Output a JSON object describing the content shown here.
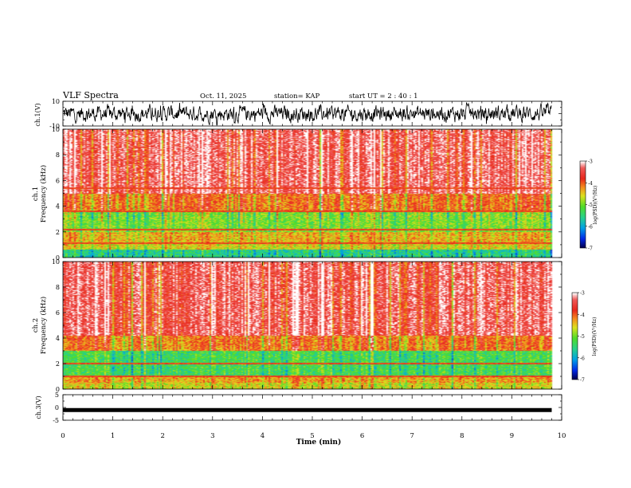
{
  "header": {
    "title": "VLF Spectra",
    "date": "Oct. 11, 2025",
    "station": "station= KAP",
    "start": "start  UT =   2 : 40 : 1"
  },
  "chart_data": [
    {
      "type": "line",
      "name": "ch1-waveform",
      "ylabel": "ch.1(V)",
      "ylim": [
        -10,
        10
      ],
      "yticks": [
        "10",
        "-10"
      ],
      "xlim": [
        0,
        10
      ],
      "data_end_min": 9.8,
      "description_values": {
        "mean": 0,
        "typical_amplitude": 4
      }
    },
    {
      "type": "heatmap",
      "name": "ch1-spectrogram",
      "ylabel": "ch.1\nFrequency  (kHz)",
      "ylim": [
        0,
        10
      ],
      "yticks": [
        "0",
        "2",
        "4",
        "6",
        "8",
        "10"
      ],
      "xlim": [
        0,
        10
      ],
      "data_end_min": 9.8,
      "colorbar": {
        "label": "log(PSD)(V²/Hz)",
        "ticks": [
          "-3",
          "-4",
          "-5",
          "-6",
          "-7"
        ],
        "range": [
          -7,
          -3
        ]
      },
      "bands_khz": [
        {
          "from": 0,
          "to": 0.6,
          "level": -5.6
        },
        {
          "from": 0.6,
          "to": 1.2,
          "level": -4.6
        },
        {
          "from": 1.2,
          "to": 2.0,
          "level": -4.4
        },
        {
          "from": 2.0,
          "to": 3.6,
          "level": -5.0
        },
        {
          "from": 3.6,
          "to": 5.0,
          "level": -4.1
        },
        {
          "from": 5.0,
          "to": 10.0,
          "level": -3.4
        }
      ],
      "lines_khz": [
        1.1,
        2.2,
        3.6,
        5.4
      ]
    },
    {
      "type": "heatmap",
      "name": "ch2-spectrogram",
      "ylabel": "ch.2\nFrequency  (kHz)",
      "ylim": [
        0,
        10
      ],
      "yticks": [
        "0",
        "2",
        "4",
        "6",
        "8",
        "10"
      ],
      "xlim": [
        0,
        10
      ],
      "data_end_min": 9.8,
      "colorbar": {
        "label": "log(PSD)(V²/Hz)",
        "ticks": [
          "-3",
          "-4",
          "-5",
          "-6",
          "-7"
        ],
        "range": [
          -7,
          -3
        ]
      },
      "bands_khz": [
        {
          "from": 0,
          "to": 0.5,
          "level": -4.6
        },
        {
          "from": 0.5,
          "to": 1.0,
          "level": -4.3
        },
        {
          "from": 1.0,
          "to": 3.0,
          "level": -5.3
        },
        {
          "from": 3.0,
          "to": 4.2,
          "level": -4.1
        },
        {
          "from": 4.2,
          "to": 10.0,
          "level": -3.4
        }
      ],
      "lines_khz": [
        1.0,
        2.0
      ]
    },
    {
      "type": "line",
      "name": "ch3-waveform",
      "ylabel": "ch.3(V)",
      "ylim": [
        -5,
        5
      ],
      "yticks": [
        "5",
        "0",
        "-5"
      ],
      "xlim": [
        0,
        10
      ],
      "data_end_min": 9.8,
      "description_values": {
        "mean": -1,
        "typical_amplitude": 0.3
      }
    }
  ],
  "xaxis": {
    "label": "Time  (min)",
    "ticks": [
      "0",
      "1",
      "2",
      "3",
      "4",
      "5",
      "6",
      "7",
      "8",
      "9",
      "10"
    ]
  },
  "colors": {
    "red": "#e8241c",
    "orange": "#f58220",
    "yellow": "#e8e020",
    "green": "#40d040",
    "cyan": "#30c8c0",
    "blue": "#0030e0",
    "navy": "#000050"
  }
}
